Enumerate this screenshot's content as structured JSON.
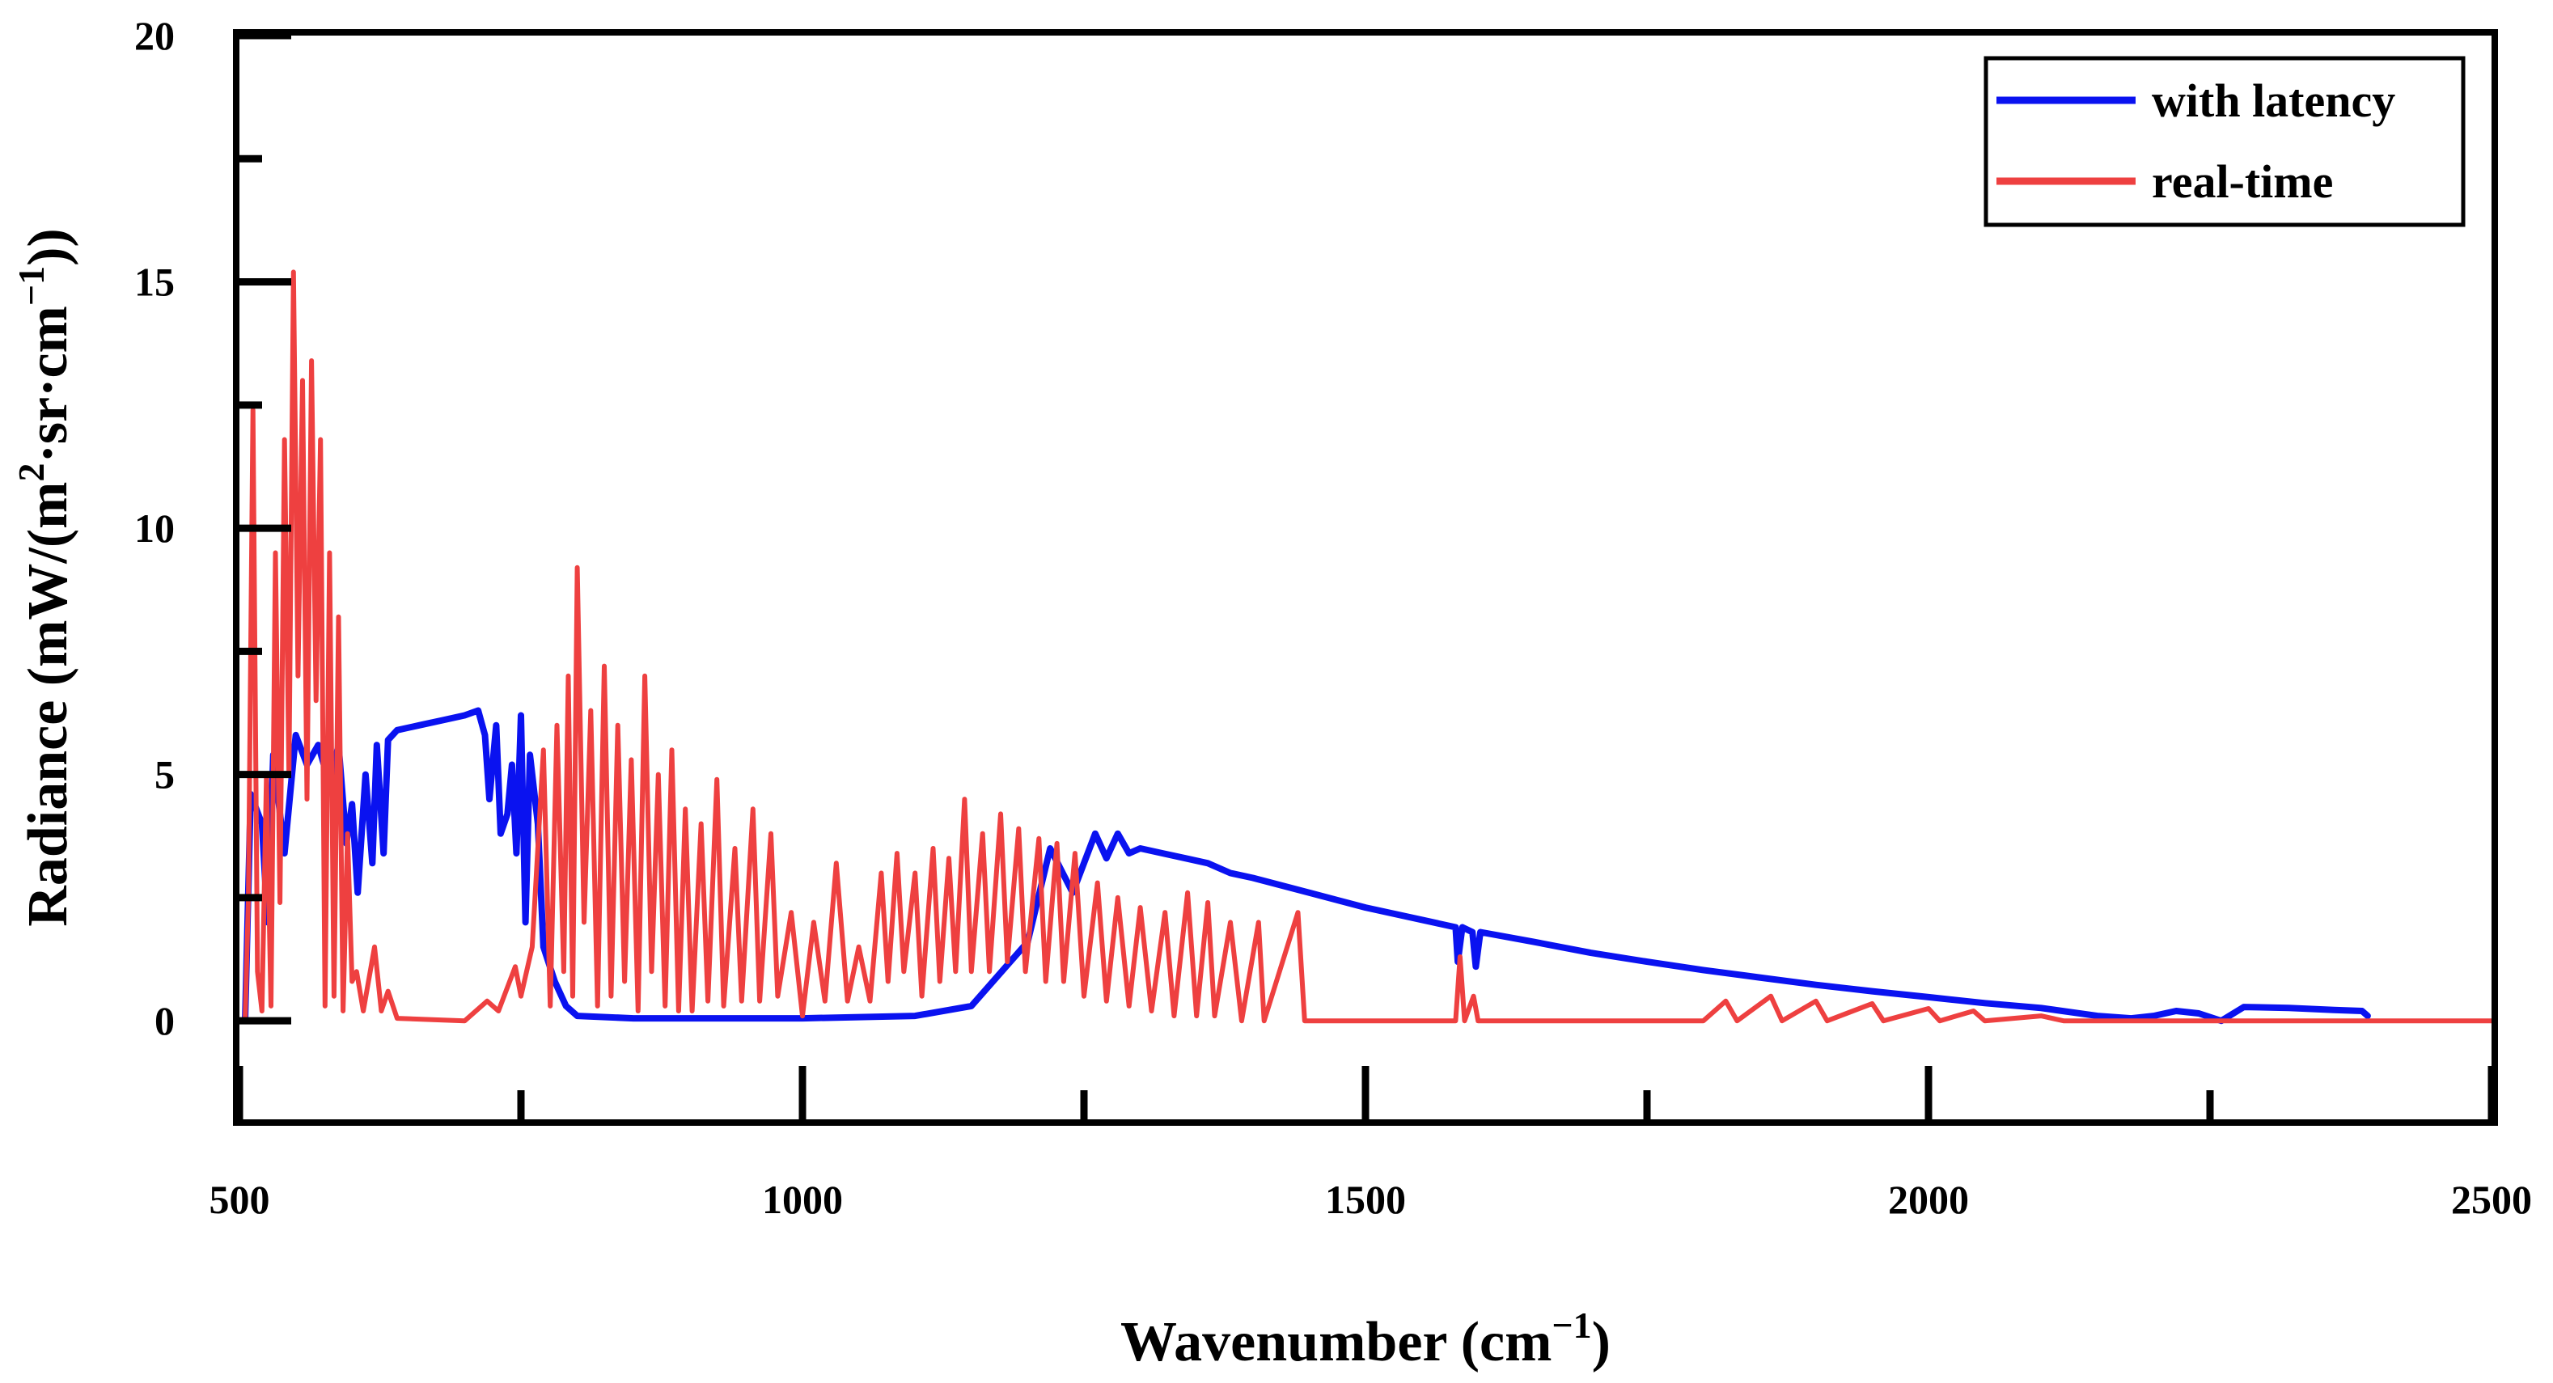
{
  "chart_data": {
    "type": "line",
    "title": "",
    "xlabel": "Wavenumber (cm",
    "xlabel_sup": "−1",
    "xlabel_end": ")",
    "ylabel": "Radiance (mW/(m",
    "ylabel_sup1": "2",
    "ylabel_mid": "·sr·cm",
    "ylabel_sup2": "−1",
    "ylabel_end": "))",
    "xlim": [
      500,
      2500
    ],
    "ylim": [
      -2,
      20
    ],
    "x_ticks": [
      500,
      1000,
      1500,
      2000,
      2500
    ],
    "x_tick_labels": [
      "500",
      "1000",
      "1500",
      "2000",
      "2500"
    ],
    "x_minor_ticks": [
      750,
      1250,
      1750,
      2250
    ],
    "y_ticks": [
      0,
      5,
      10,
      15,
      20
    ],
    "y_tick_labels": [
      "0",
      "5",
      "10",
      "15",
      "20"
    ],
    "y_minor_ticks": [
      2.5,
      7.5,
      12.5,
      17.5
    ],
    "grid": false,
    "legend_position": "top-right",
    "series": [
      {
        "name": "with latency",
        "color": "#0a12f0",
        "points": [
          [
            505,
            0
          ],
          [
            510,
            4.6
          ],
          [
            520,
            4
          ],
          [
            525,
            2
          ],
          [
            530,
            5.4
          ],
          [
            540,
            3.4
          ],
          [
            550,
            5.8
          ],
          [
            560,
            5.2
          ],
          [
            570,
            5.6
          ],
          [
            580,
            4.8
          ],
          [
            588,
            5.6
          ],
          [
            595,
            3.6
          ],
          [
            600,
            4.4
          ],
          [
            605,
            2.6
          ],
          [
            612,
            5
          ],
          [
            618,
            3.2
          ],
          [
            622,
            5.6
          ],
          [
            628,
            3.4
          ],
          [
            632,
            5.7
          ],
          [
            640,
            5.9
          ],
          [
            660,
            6.0
          ],
          [
            680,
            6.1
          ],
          [
            700,
            6.2
          ],
          [
            712,
            6.3
          ],
          [
            718,
            5.8
          ],
          [
            722,
            4.5
          ],
          [
            728,
            6.0
          ],
          [
            732,
            3.8
          ],
          [
            738,
            4.2
          ],
          [
            742,
            5.2
          ],
          [
            746,
            3.4
          ],
          [
            750,
            6.2
          ],
          [
            754,
            2.0
          ],
          [
            758,
            5.4
          ],
          [
            765,
            4.0
          ],
          [
            770,
            1.5
          ],
          [
            780,
            0.8
          ],
          [
            790,
            0.3
          ],
          [
            800,
            0.1
          ],
          [
            850,
            0.05
          ],
          [
            1000,
            0.05
          ],
          [
            1100,
            0.1
          ],
          [
            1150,
            0.3
          ],
          [
            1200,
            1.6
          ],
          [
            1220,
            3.5
          ],
          [
            1240,
            2.6
          ],
          [
            1260,
            3.8
          ],
          [
            1270,
            3.3
          ],
          [
            1280,
            3.8
          ],
          [
            1290,
            3.4
          ],
          [
            1300,
            3.5
          ],
          [
            1320,
            3.4
          ],
          [
            1340,
            3.3
          ],
          [
            1360,
            3.2
          ],
          [
            1380,
            3.0
          ],
          [
            1400,
            2.9
          ],
          [
            1450,
            2.6
          ],
          [
            1500,
            2.3
          ],
          [
            1550,
            2.05
          ],
          [
            1580,
            1.9
          ],
          [
            1582,
            1.2
          ],
          [
            1586,
            1.9
          ],
          [
            1595,
            1.8
          ],
          [
            1598,
            1.1
          ],
          [
            1602,
            1.8
          ],
          [
            1650,
            1.6
          ],
          [
            1700,
            1.38
          ],
          [
            1750,
            1.2
          ],
          [
            1800,
            1.03
          ],
          [
            1850,
            0.88
          ],
          [
            1900,
            0.73
          ],
          [
            1950,
            0.6
          ],
          [
            2000,
            0.48
          ],
          [
            2050,
            0.36
          ],
          [
            2100,
            0.26
          ],
          [
            2150,
            0.1
          ],
          [
            2180,
            0.05
          ],
          [
            2200,
            0.1
          ],
          [
            2220,
            0.2
          ],
          [
            2240,
            0.15
          ],
          [
            2260,
            0.0
          ],
          [
            2280,
            0.28
          ],
          [
            2320,
            0.26
          ],
          [
            2360,
            0.22
          ],
          [
            2385,
            0.2
          ],
          [
            2390,
            0.1
          ]
        ]
      },
      {
        "name": "real-time",
        "color": "#ee4040",
        "points": [
          [
            505,
            0
          ],
          [
            508,
            2.5
          ],
          [
            512,
            12.4
          ],
          [
            516,
            1
          ],
          [
            520,
            0.2
          ],
          [
            524,
            5
          ],
          [
            528,
            0.3
          ],
          [
            532,
            9.5
          ],
          [
            536,
            2.4
          ],
          [
            540,
            11.8
          ],
          [
            544,
            5.0
          ],
          [
            548,
            15.2
          ],
          [
            552,
            7.0
          ],
          [
            556,
            13.0
          ],
          [
            560,
            4.5
          ],
          [
            564,
            13.4
          ],
          [
            568,
            6.5
          ],
          [
            572,
            11.8
          ],
          [
            576,
            0.3
          ],
          [
            580,
            9.5
          ],
          [
            584,
            0.5
          ],
          [
            588,
            8.2
          ],
          [
            592,
            0.2
          ],
          [
            596,
            3.8
          ],
          [
            600,
            0.8
          ],
          [
            604,
            1.0
          ],
          [
            610,
            0.2
          ],
          [
            620,
            1.5
          ],
          [
            626,
            0.2
          ],
          [
            632,
            0.6
          ],
          [
            640,
            0.05
          ],
          [
            700,
            0.0
          ],
          [
            720,
            0.4
          ],
          [
            730,
            0.2
          ],
          [
            745,
            1.1
          ],
          [
            750,
            0.5
          ],
          [
            760,
            1.5
          ],
          [
            770,
            5.5
          ],
          [
            776,
            0.3
          ],
          [
            782,
            6.0
          ],
          [
            788,
            1.0
          ],
          [
            792,
            7.0
          ],
          [
            796,
            0.5
          ],
          [
            800,
            9.2
          ],
          [
            806,
            2.0
          ],
          [
            812,
            6.3
          ],
          [
            818,
            0.3
          ],
          [
            824,
            7.2
          ],
          [
            830,
            0.5
          ],
          [
            836,
            6.0
          ],
          [
            842,
            0.8
          ],
          [
            848,
            5.3
          ],
          [
            854,
            0.2
          ],
          [
            860,
            7.0
          ],
          [
            866,
            1.0
          ],
          [
            872,
            5.0
          ],
          [
            878,
            0.3
          ],
          [
            884,
            5.5
          ],
          [
            890,
            0.2
          ],
          [
            896,
            4.3
          ],
          [
            902,
            0.2
          ],
          [
            910,
            4.0
          ],
          [
            916,
            0.4
          ],
          [
            924,
            4.9
          ],
          [
            930,
            0.3
          ],
          [
            940,
            3.5
          ],
          [
            946,
            0.4
          ],
          [
            956,
            4.3
          ],
          [
            962,
            0.4
          ],
          [
            972,
            3.8
          ],
          [
            978,
            0.5
          ],
          [
            990,
            2.2
          ],
          [
            1000,
            0.1
          ],
          [
            1010,
            2.0
          ],
          [
            1020,
            0.4
          ],
          [
            1030,
            3.2
          ],
          [
            1040,
            0.4
          ],
          [
            1050,
            1.5
          ],
          [
            1060,
            0.4
          ],
          [
            1070,
            3.0
          ],
          [
            1076,
            0.8
          ],
          [
            1084,
            3.4
          ],
          [
            1090,
            1.0
          ],
          [
            1100,
            3.0
          ],
          [
            1106,
            0.5
          ],
          [
            1116,
            3.5
          ],
          [
            1122,
            0.8
          ],
          [
            1130,
            3.3
          ],
          [
            1136,
            1.0
          ],
          [
            1144,
            4.5
          ],
          [
            1150,
            1.0
          ],
          [
            1160,
            3.8
          ],
          [
            1166,
            1.0
          ],
          [
            1176,
            4.2
          ],
          [
            1182,
            1.2
          ],
          [
            1192,
            3.9
          ],
          [
            1198,
            1.0
          ],
          [
            1210,
            3.7
          ],
          [
            1216,
            0.8
          ],
          [
            1226,
            3.6
          ],
          [
            1232,
            0.8
          ],
          [
            1242,
            3.4
          ],
          [
            1250,
            0.5
          ],
          [
            1262,
            2.8
          ],
          [
            1270,
            0.4
          ],
          [
            1280,
            2.5
          ],
          [
            1290,
            0.3
          ],
          [
            1300,
            2.3
          ],
          [
            1310,
            0.2
          ],
          [
            1322,
            2.2
          ],
          [
            1330,
            0.1
          ],
          [
            1342,
            2.6
          ],
          [
            1350,
            0.1
          ],
          [
            1360,
            2.4
          ],
          [
            1366,
            0.1
          ],
          [
            1380,
            2.0
          ],
          [
            1390,
            0.0
          ],
          [
            1405,
            2.0
          ],
          [
            1410,
            0.0
          ],
          [
            1440,
            2.2
          ],
          [
            1446,
            0.0
          ],
          [
            1580,
            0.0
          ],
          [
            1584,
            1.3
          ],
          [
            1588,
            0.0
          ],
          [
            1596,
            0.5
          ],
          [
            1600,
            0.0
          ],
          [
            1800,
            0.0
          ],
          [
            1820,
            0.4
          ],
          [
            1830,
            0.0
          ],
          [
            1860,
            0.5
          ],
          [
            1870,
            0.0
          ],
          [
            1900,
            0.4
          ],
          [
            1910,
            0.0
          ],
          [
            1950,
            0.35
          ],
          [
            1960,
            0.0
          ],
          [
            2000,
            0.25
          ],
          [
            2010,
            0.0
          ],
          [
            2040,
            0.2
          ],
          [
            2050,
            0.0
          ],
          [
            2100,
            0.1
          ],
          [
            2120,
            0.0
          ],
          [
            2200,
            0.0
          ],
          [
            2500,
            0.0
          ]
        ]
      }
    ]
  }
}
